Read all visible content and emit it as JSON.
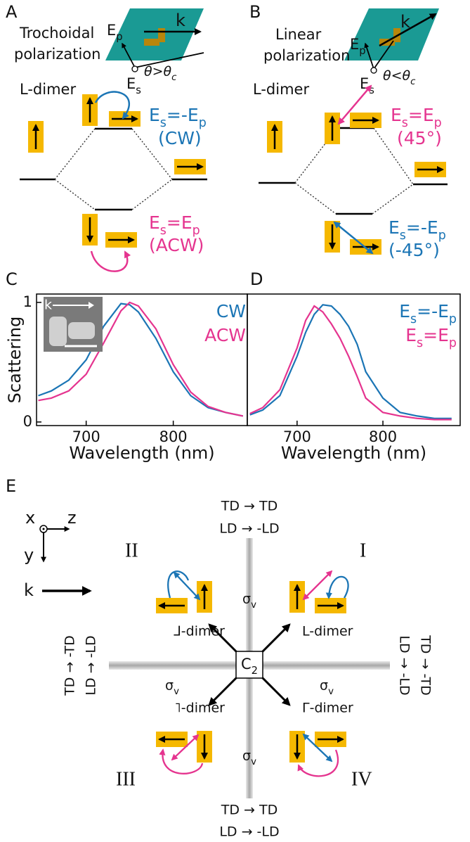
{
  "panels": {
    "A": {
      "label": "A",
      "title_lines": [
        "Trochoidal",
        "polarization"
      ],
      "k": "k",
      "Ep": "Ep",
      "Es": "Es",
      "angle": "θ>θc",
      "dimer": "L-dimer",
      "upper_mode": "Es=-Ep",
      "upper_mode_note": "(CW)",
      "lower_mode": "Es=Ep",
      "lower_mode_note": "(ACW)"
    },
    "B": {
      "label": "B",
      "title_lines": [
        "Linear",
        "polarization"
      ],
      "k": "k",
      "Ep": "Ep",
      "Es": "Es",
      "angle": "θ<θc",
      "dimer": "L-dimer",
      "upper_mode": "Es=Ep",
      "upper_mode_note": "(45°)",
      "lower_mode": "Es=-Ep",
      "lower_mode_note": "(-45°)"
    },
    "E": {
      "label": "E",
      "axes": {
        "x": "x",
        "z": "z",
        "y": "y"
      },
      "k": "k",
      "c2": "C2",
      "sigma": [
        "σv",
        "σv",
        "σv",
        "σv"
      ],
      "dimers": {
        "I": "L-dimer",
        "II": "⅃-dimer",
        "III": "˥-dimer",
        "IV": "Γ-dimer"
      },
      "quadrants": [
        "II",
        "I",
        "III",
        "IV"
      ],
      "top": [
        "TD → TD",
        "LD → -LD"
      ],
      "bottom": [
        "TD → TD",
        "LD → -LD"
      ],
      "left": [
        "TD → -TD",
        "LD → -LD"
      ],
      "right": [
        "TD → -TD",
        "LD → -LD"
      ]
    }
  },
  "chart_data": [
    {
      "type": "line",
      "panel_label": "C",
      "inset_label": "k",
      "ylabel": "Scattering",
      "xlabel": "Wavelength (nm)",
      "x": [
        645,
        660,
        680,
        700,
        720,
        740,
        750,
        760,
        780,
        800,
        820,
        840,
        860,
        880
      ],
      "series": [
        {
          "name": "CW",
          "color": "#1b75b5",
          "values": [
            0.22,
            0.26,
            0.35,
            0.52,
            0.8,
            0.99,
            0.98,
            0.92,
            0.7,
            0.42,
            0.22,
            0.12,
            0.08,
            0.05
          ]
        },
        {
          "name": "ACW",
          "color": "#e5348f",
          "values": [
            0.18,
            0.2,
            0.26,
            0.4,
            0.66,
            0.93,
            1.0,
            0.97,
            0.78,
            0.48,
            0.25,
            0.13,
            0.08,
            0.05
          ]
        }
      ],
      "xlim": [
        643,
        885
      ],
      "ylim": [
        -0.03,
        1.07
      ],
      "xticks": [
        700,
        800
      ],
      "yticks": [
        0,
        1
      ]
    },
    {
      "type": "line",
      "panel_label": "D",
      "xlabel": "Wavelength (nm)",
      "x": [
        645,
        660,
        680,
        700,
        710,
        720,
        730,
        740,
        750,
        760,
        770,
        780,
        800,
        820,
        840,
        860,
        880
      ],
      "series": [
        {
          "name": "Es=-Ep",
          "color": "#1b75b5",
          "values": [
            0.06,
            0.1,
            0.22,
            0.55,
            0.75,
            0.9,
            0.98,
            0.97,
            0.9,
            0.8,
            0.65,
            0.42,
            0.2,
            0.08,
            0.05,
            0.03,
            0.03
          ]
        },
        {
          "name": "Es=Ep",
          "color": "#e5348f",
          "values": [
            0.07,
            0.12,
            0.27,
            0.62,
            0.85,
            0.97,
            0.92,
            0.82,
            0.7,
            0.55,
            0.38,
            0.2,
            0.08,
            0.05,
            0.03,
            0.02,
            0.02
          ]
        }
      ],
      "xlim": [
        642,
        890
      ],
      "ylim": [
        -0.03,
        1.07
      ],
      "xticks": [
        700,
        800
      ]
    }
  ]
}
